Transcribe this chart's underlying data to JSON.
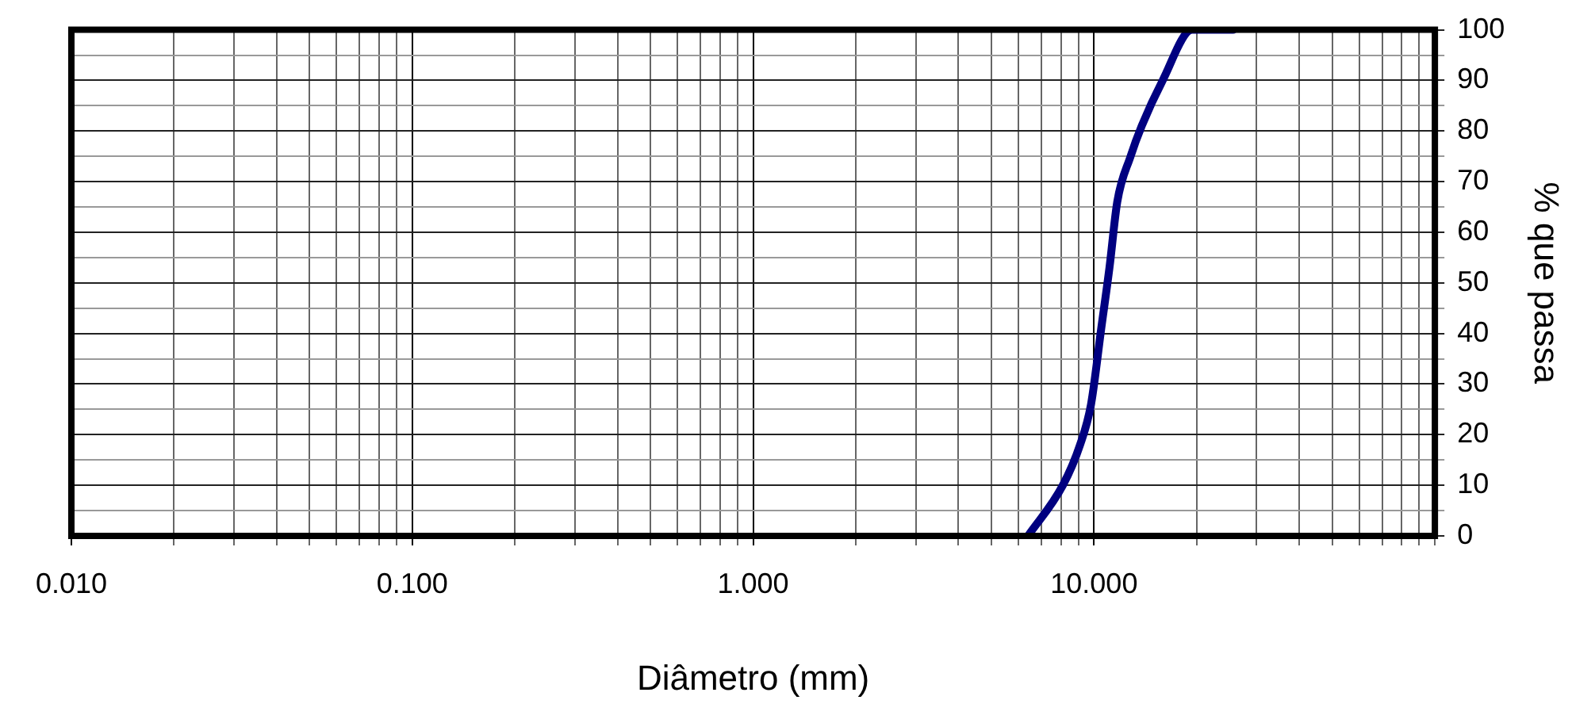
{
  "chart_data": {
    "type": "line",
    "xlabel": "Diâmetro (mm)",
    "ylabel": "% que passa",
    "log": "x",
    "grid": true,
    "marker": "none",
    "line_style": "solid",
    "legend": false,
    "xlim": [
      0.01,
      100
    ],
    "ylim": [
      0,
      100
    ],
    "xticks": [
      {
        "value": 0.01,
        "label": "0.010"
      },
      {
        "value": 0.02,
        "label": null
      },
      {
        "value": 0.03,
        "label": null
      },
      {
        "value": 0.04,
        "label": null
      },
      {
        "value": 0.05,
        "label": null
      },
      {
        "value": 0.06,
        "label": null
      },
      {
        "value": 0.07,
        "label": null
      },
      {
        "value": 0.08,
        "label": null
      },
      {
        "value": 0.09,
        "label": null
      },
      {
        "value": 0.1,
        "label": "0.100"
      },
      {
        "value": 0.2,
        "label": null
      },
      {
        "value": 0.3,
        "label": null
      },
      {
        "value": 0.4,
        "label": null
      },
      {
        "value": 0.5,
        "label": null
      },
      {
        "value": 0.6,
        "label": null
      },
      {
        "value": 0.7,
        "label": null
      },
      {
        "value": 0.8,
        "label": null
      },
      {
        "value": 0.9,
        "label": null
      },
      {
        "value": 1,
        "label": "1.000"
      },
      {
        "value": 2,
        "label": null
      },
      {
        "value": 3,
        "label": null
      },
      {
        "value": 4,
        "label": null
      },
      {
        "value": 5,
        "label": null
      },
      {
        "value": 6,
        "label": null
      },
      {
        "value": 7,
        "label": null
      },
      {
        "value": 8,
        "label": null
      },
      {
        "value": 9,
        "label": null
      },
      {
        "value": 10,
        "label": "10.000"
      },
      {
        "value": 20,
        "label": null
      },
      {
        "value": 30,
        "label": null
      },
      {
        "value": 40,
        "label": null
      },
      {
        "value": 50,
        "label": null
      },
      {
        "value": 60,
        "label": null
      },
      {
        "value": 70,
        "label": null
      },
      {
        "value": 80,
        "label": null
      },
      {
        "value": 90,
        "label": null
      },
      {
        "value": 100,
        "label": null
      }
    ],
    "yticks": [
      0,
      {
        "value": 5,
        "label": null
      },
      10,
      {
        "value": 15,
        "label": null
      },
      20,
      {
        "value": 25,
        "label": null
      },
      30,
      {
        "value": 35,
        "label": null
      },
      40,
      {
        "value": 45,
        "label": null
      },
      50,
      {
        "value": 55,
        "label": null
      },
      60,
      {
        "value": 65,
        "label": null
      },
      70,
      {
        "value": 75,
        "label": null
      },
      80,
      {
        "value": 85,
        "label": null
      },
      90,
      {
        "value": 95,
        "label": null
      },
      100
    ],
    "series": [
      {
        "color": "#000080",
        "x": [
          6.4,
          8.1,
          9.1,
          9.8,
          10.5,
          11.1,
          11.7,
          12.8,
          13.8,
          15.9,
          19.4,
          25.6
        ],
        "values": [
          0,
          10,
          18,
          26,
          41,
          53,
          66,
          75,
          81,
          90,
          100,
          100
        ]
      }
    ]
  }
}
